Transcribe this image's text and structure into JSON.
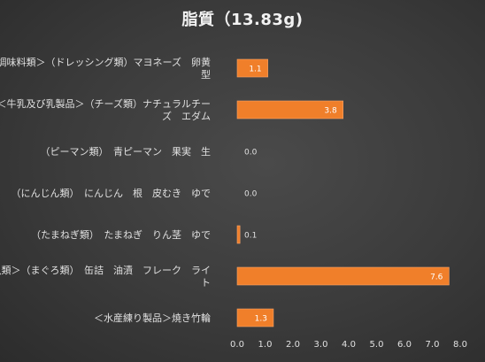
{
  "chart_data": {
    "type": "bar",
    "orientation": "horizontal",
    "title": "脂質（13.83g)",
    "categories": [
      [
        "＜調味料類＞（ドレッシング類）マヨネーズ　卵黄",
        "型"
      ],
      [
        "＜牛乳及び乳製品＞（チーズ類）ナチュラルチー",
        "ズ　エダム"
      ],
      [
        "（ピーマン類）　青ピーマン　果実　生"
      ],
      [
        "（にんじん類）　にんじん　根　皮むき　ゆで"
      ],
      [
        "（たまねぎ類）　たまねぎ　りん茎　ゆで"
      ],
      [
        "＜魚類＞（まぐろ類）　缶詰　油漬　フレーク　ライ",
        "ト"
      ],
      [
        "＜水産練り製品＞焼き竹輪"
      ]
    ],
    "values": [
      1.1,
      3.8,
      0.0,
      0.0,
      0.1,
      7.6,
      1.3
    ],
    "data_labels": [
      "1.1",
      "3.8",
      "0.0",
      "0.0",
      "0.1",
      "7.6",
      "1.3"
    ],
    "xlim": [
      0,
      8
    ],
    "x_ticks": [
      "0.0",
      "1.0",
      "2.0",
      "3.0",
      "4.0",
      "5.0",
      "6.0",
      "7.0",
      "8.0"
    ],
    "grid": false,
    "legend": "none",
    "colors": {
      "bar": "#f07f2a",
      "bar_edge": "#f5a36a",
      "background": "#3b3b3b",
      "text": "#e0e0e0",
      "data_label_inside": "#ffffff",
      "data_label_outside": "#e0e0e0"
    }
  }
}
